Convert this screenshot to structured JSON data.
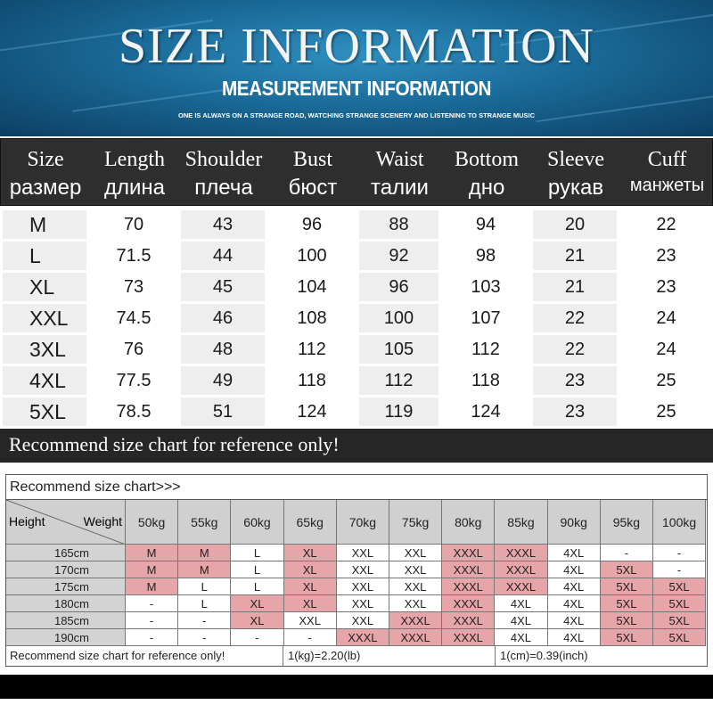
{
  "banner": {
    "title": "SIZE INFORMATION",
    "subtitle": "MEASUREMENT INFORMATION",
    "tagline": "ONE IS ALWAYS ON A STRANGE ROAD, WATCHING STRANGE SCENERY AND LISTENING TO STRANGE MUSIC",
    "colors": {
      "dark": "#0c3f63",
      "light": "#2f8fbf"
    }
  },
  "size_table": {
    "columns": [
      {
        "en": "Size",
        "ru": "размер"
      },
      {
        "en": "Length",
        "ru": "длина"
      },
      {
        "en": "Shoulder",
        "ru": "плеча"
      },
      {
        "en": "Bust",
        "ru": "бюст"
      },
      {
        "en": "Waist",
        "ru": "талии"
      },
      {
        "en": "Bottom",
        "ru": "дно"
      },
      {
        "en": "Sleeve",
        "ru": "рукав"
      },
      {
        "en": "Cuff",
        "ru": "манжеты"
      }
    ],
    "rows": [
      [
        "M",
        "70",
        "43",
        "96",
        "88",
        "94",
        "20",
        "22"
      ],
      [
        "L",
        "71.5",
        "44",
        "100",
        "92",
        "98",
        "21",
        "23"
      ],
      [
        "XL",
        "73",
        "45",
        "104",
        "96",
        "103",
        "21",
        "23"
      ],
      [
        "XXL",
        "74.5",
        "46",
        "108",
        "100",
        "107",
        "22",
        "24"
      ],
      [
        "3XL",
        "76",
        "48",
        "112",
        "105",
        "112",
        "22",
        "24"
      ],
      [
        "4XL",
        "77.5",
        "49",
        "118",
        "112",
        "118",
        "23",
        "25"
      ],
      [
        "5XL",
        "78.5",
        "51",
        "124",
        "119",
        "124",
        "23",
        "25"
      ]
    ],
    "footer": "Recommend size chart for reference only!"
  },
  "recommend_chart": {
    "title": "Recommend size chart>>>",
    "corner_height": "Height",
    "corner_weight": "Weight",
    "weights": [
      "50kg",
      "55kg",
      "60kg",
      "65kg",
      "70kg",
      "75kg",
      "80kg",
      "85kg",
      "90kg",
      "95kg",
      "100kg"
    ],
    "rows": [
      {
        "height": "165cm",
        "cells": [
          [
            "M",
            "pink"
          ],
          [
            "M",
            "pink"
          ],
          [
            "L",
            "white"
          ],
          [
            "XL",
            "pink"
          ],
          [
            "XXL",
            "white"
          ],
          [
            "XXL",
            "white"
          ],
          [
            "XXXL",
            "pink"
          ],
          [
            "XXXL",
            "pink"
          ],
          [
            "4XL",
            "white"
          ],
          [
            "-",
            "white"
          ],
          [
            "-",
            "white"
          ]
        ]
      },
      {
        "height": "170cm",
        "cells": [
          [
            "M",
            "pink"
          ],
          [
            "M",
            "pink"
          ],
          [
            "L",
            "white"
          ],
          [
            "XL",
            "pink"
          ],
          [
            "XXL",
            "white"
          ],
          [
            "XXL",
            "white"
          ],
          [
            "XXXL",
            "pink"
          ],
          [
            "XXXL",
            "pink"
          ],
          [
            "4XL",
            "white"
          ],
          [
            "5XL",
            "pink"
          ],
          [
            "-",
            "white"
          ]
        ]
      },
      {
        "height": "175cm",
        "cells": [
          [
            "M",
            "pink"
          ],
          [
            "L",
            "white"
          ],
          [
            "L",
            "white"
          ],
          [
            "XL",
            "pink"
          ],
          [
            "XXL",
            "white"
          ],
          [
            "XXL",
            "white"
          ],
          [
            "XXXL",
            "pink"
          ],
          [
            "XXXL",
            "pink"
          ],
          [
            "4XL",
            "white"
          ],
          [
            "5XL",
            "pink"
          ],
          [
            "5XL",
            "pink"
          ]
        ]
      },
      {
        "height": "180cm",
        "cells": [
          [
            "-",
            "white"
          ],
          [
            "L",
            "white"
          ],
          [
            "XL",
            "pink"
          ],
          [
            "XL",
            "pink"
          ],
          [
            "XXL",
            "white"
          ],
          [
            "XXL",
            "white"
          ],
          [
            "XXXL",
            "pink"
          ],
          [
            "4XL",
            "white"
          ],
          [
            "4XL",
            "white"
          ],
          [
            "5XL",
            "pink"
          ],
          [
            "5XL",
            "pink"
          ]
        ]
      },
      {
        "height": "185cm",
        "cells": [
          [
            "-",
            "white"
          ],
          [
            "-",
            "white"
          ],
          [
            "XL",
            "pink"
          ],
          [
            "XXL",
            "white"
          ],
          [
            "XXL",
            "white"
          ],
          [
            "XXXL",
            "pink"
          ],
          [
            "XXXL",
            "pink"
          ],
          [
            "4XL",
            "white"
          ],
          [
            "4XL",
            "white"
          ],
          [
            "5XL",
            "pink"
          ],
          [
            "5XL",
            "pink"
          ]
        ]
      },
      {
        "height": "190cm",
        "cells": [
          [
            "-",
            "white"
          ],
          [
            "-",
            "white"
          ],
          [
            "-",
            "white"
          ],
          [
            "-",
            "white"
          ],
          [
            "XXXL",
            "pink"
          ],
          [
            "XXXL",
            "pink"
          ],
          [
            "XXXL",
            "pink"
          ],
          [
            "4XL",
            "white"
          ],
          [
            "4XL",
            "white"
          ],
          [
            "5XL",
            "pink"
          ],
          [
            "5XL",
            "pink"
          ]
        ]
      }
    ],
    "footer_note": "Recommend size chart for reference only!",
    "footer_kg": "1(kg)=2.20(lb)",
    "footer_cm": "1(cm)=0.39(inch)",
    "colors": {
      "pink": "#e6a5a8",
      "grey": "#d0d0d0"
    }
  }
}
